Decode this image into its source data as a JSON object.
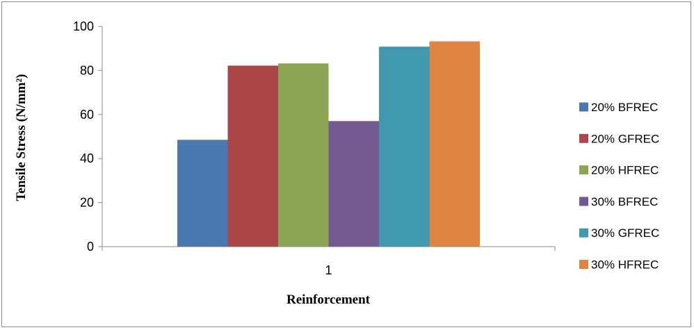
{
  "chart_data": {
    "type": "bar",
    "categories": [
      "1"
    ],
    "series": [
      {
        "name": "20% BFREC",
        "values": [
          48.5
        ],
        "color": "#4a78b0"
      },
      {
        "name": "20% GFREC",
        "values": [
          82.2
        ],
        "color": "#ac4747"
      },
      {
        "name": "20% HFREC",
        "values": [
          83.2
        ],
        "color": "#8ba552"
      },
      {
        "name": "30% BFREC",
        "values": [
          57.0
        ],
        "color": "#735a90"
      },
      {
        "name": "30% GFREC",
        "values": [
          90.8
        ],
        "color": "#4199b0"
      },
      {
        "name": "30% HFREC",
        "values": [
          93.2
        ],
        "color": "#dc8440"
      }
    ],
    "title": "",
    "xlabel": "Reinforcement",
    "ylabel": "Tensile Stress (N/mm²)",
    "ylim": [
      0,
      100
    ],
    "yticks": [
      "0",
      "20",
      "40",
      "60",
      "80",
      "100"
    ],
    "grid": false,
    "legend_position": "right"
  }
}
